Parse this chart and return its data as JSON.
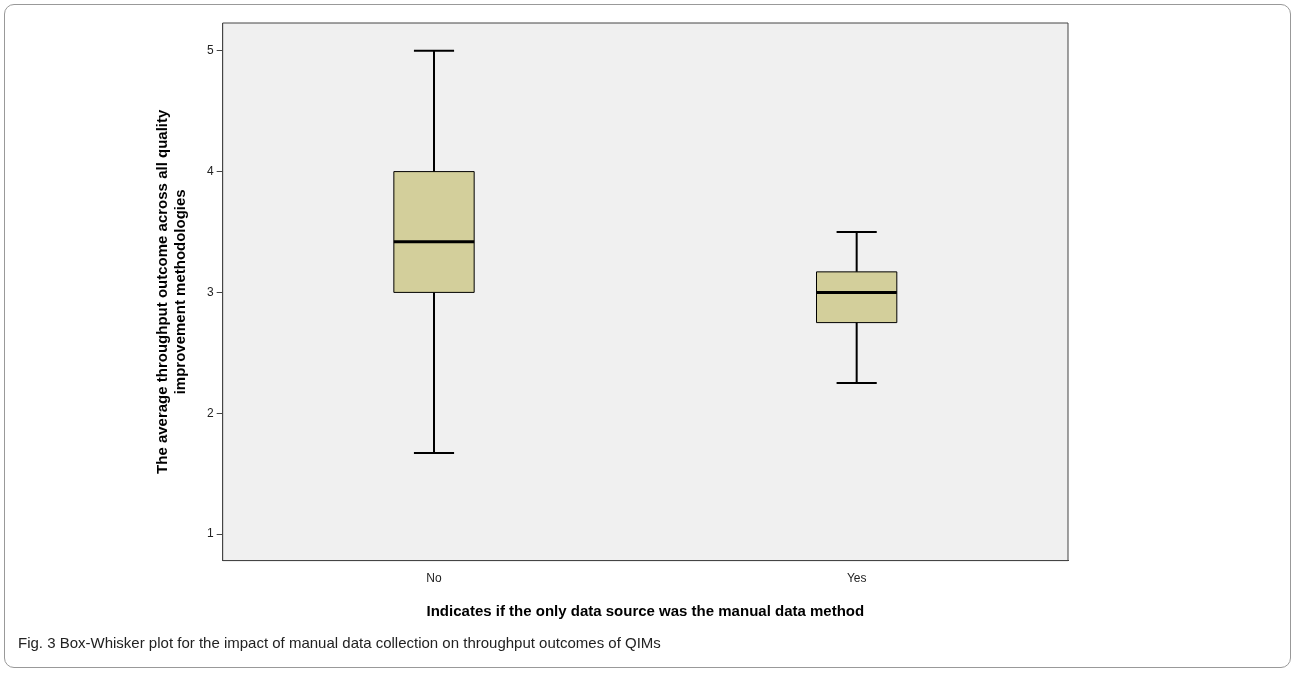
{
  "chart_data": {
    "type": "box",
    "xlabel": "Indicates if the only data source was the manual data method",
    "ylabel": "The average throughput outcome across all quality improvement methodologies",
    "categories": [
      "No",
      "Yes"
    ],
    "color": "#d3cf9b",
    "boxes": [
      {
        "low": 1.67,
        "q1": 3,
        "median": 3.42,
        "q3": 4,
        "high": 5
      },
      {
        "low": 2.25,
        "q1": 2.75,
        "median": 3,
        "q3": 3.17,
        "high": 3.5
      }
    ],
    "ylim": [
      0.78,
      5.23
    ],
    "yticks": [
      1,
      2,
      3,
      4,
      5
    ],
    "grid": false,
    "legend": false,
    "annotations": [
      "Fig. 3 Box-Whisker plot for the impact of manual data collection on throughput outcomes of QIMs"
    ]
  }
}
